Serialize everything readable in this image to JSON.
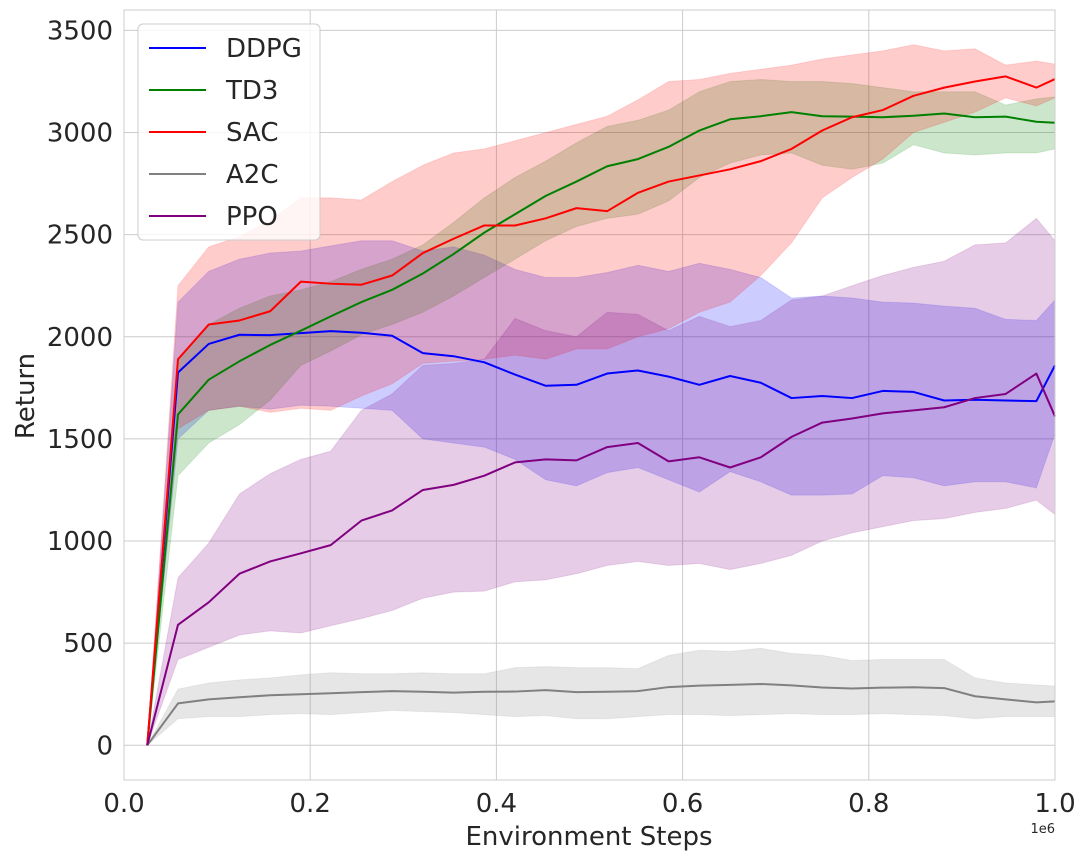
{
  "chart_data": {
    "type": "line",
    "xlabel": "Environment Steps",
    "ylabel": "Return",
    "x_offset_label": "1e6",
    "xlim": [
      0.0,
      1.0
    ],
    "ylim": [
      -170,
      3600
    ],
    "x_ticks": [
      0.0,
      0.2,
      0.4,
      0.6,
      0.8,
      1.0
    ],
    "x_tick_labels": [
      "0.0",
      "0.2",
      "0.4",
      "0.6",
      "0.8",
      "1.0"
    ],
    "y_ticks": [
      0,
      500,
      1000,
      1500,
      2000,
      2500,
      3000,
      3500
    ],
    "y_tick_labels": [
      "0",
      "500",
      "1000",
      "1500",
      "2000",
      "2500",
      "3000",
      "3500"
    ],
    "grid": true,
    "legend_position": "top-left",
    "x": [
      0.025,
      0.058,
      0.091,
      0.124,
      0.157,
      0.19,
      0.222,
      0.255,
      0.288,
      0.321,
      0.354,
      0.387,
      0.42,
      0.453,
      0.486,
      0.519,
      0.552,
      0.585,
      0.618,
      0.651,
      0.684,
      0.717,
      0.75,
      0.782,
      0.815,
      0.848,
      0.881,
      0.914,
      0.947,
      0.98,
      1.0
    ],
    "series": [
      {
        "name": "DDPG",
        "color": "#0000ff",
        "values": [
          0,
          1825,
          1965,
          2010,
          2008,
          2018,
          2028,
          2020,
          2005,
          1920,
          1905,
          1875,
          1815,
          1760,
          1765,
          1820,
          1835,
          1805,
          1765,
          1808,
          1775,
          1700,
          1710,
          1700,
          1735,
          1730,
          1688,
          1692,
          1688,
          1685,
          1860
        ],
        "lower": [
          0,
          1500,
          1640,
          1660,
          1645,
          1665,
          1660,
          1650,
          1640,
          1500,
          1480,
          1460,
          1400,
          1300,
          1270,
          1335,
          1360,
          1300,
          1240,
          1340,
          1290,
          1225,
          1225,
          1230,
          1320,
          1310,
          1270,
          1290,
          1290,
          1260,
          1525
        ],
        "upper": [
          0,
          2170,
          2320,
          2380,
          2410,
          2420,
          2445,
          2470,
          2470,
          2420,
          2440,
          2400,
          2330,
          2290,
          2290,
          2315,
          2350,
          2320,
          2360,
          2330,
          2290,
          2190,
          2200,
          2190,
          2170,
          2165,
          2150,
          2140,
          2085,
          2080,
          2180
        ]
      },
      {
        "name": "TD3",
        "color": "#008000",
        "values": [
          0,
          1620,
          1790,
          1880,
          1960,
          2030,
          2100,
          2170,
          2230,
          2310,
          2405,
          2510,
          2600,
          2690,
          2760,
          2835,
          2870,
          2930,
          3010,
          3065,
          3080,
          3100,
          3080,
          3078,
          3075,
          3082,
          3093,
          3075,
          3078,
          3053,
          3048
        ],
        "lower": [
          0,
          1320,
          1480,
          1570,
          1690,
          1860,
          1930,
          2010,
          2060,
          2120,
          2200,
          2290,
          2380,
          2470,
          2540,
          2580,
          2600,
          2665,
          2780,
          2850,
          2890,
          2900,
          2840,
          2820,
          2850,
          2940,
          2900,
          2890,
          2900,
          2900,
          2920
        ],
        "upper": [
          0,
          1890,
          2060,
          2140,
          2200,
          2230,
          2270,
          2330,
          2380,
          2450,
          2560,
          2680,
          2780,
          2860,
          2950,
          3030,
          3060,
          3110,
          3200,
          3250,
          3260,
          3250,
          3250,
          3240,
          3220,
          3200,
          3200,
          3200,
          3135,
          3165,
          3175
        ]
      },
      {
        "name": "SAC",
        "color": "#ff0000",
        "values": [
          0,
          1890,
          2060,
          2080,
          2125,
          2270,
          2260,
          2255,
          2300,
          2410,
          2480,
          2545,
          2545,
          2580,
          2630,
          2615,
          2705,
          2760,
          2790,
          2820,
          2860,
          2920,
          3010,
          3075,
          3110,
          3180,
          3220,
          3250,
          3275,
          3220,
          3262
        ],
        "lower": [
          0,
          1550,
          1640,
          1660,
          1630,
          1650,
          1640,
          1710,
          1770,
          1870,
          1880,
          1890,
          1910,
          1890,
          1940,
          1940,
          2000,
          2040,
          2120,
          2170,
          2300,
          2460,
          2680,
          2780,
          2870,
          3000,
          3050,
          3100,
          3170,
          3130,
          3170
        ],
        "upper": [
          0,
          2250,
          2440,
          2490,
          2570,
          2680,
          2680,
          2670,
          2760,
          2840,
          2900,
          2920,
          2960,
          3000,
          3040,
          3080,
          3160,
          3250,
          3260,
          3290,
          3310,
          3330,
          3360,
          3380,
          3400,
          3430,
          3400,
          3410,
          3330,
          3350,
          3335
        ]
      },
      {
        "name": "A2C",
        "color": "#808080",
        "values": [
          0,
          205,
          225,
          235,
          245,
          250,
          255,
          260,
          265,
          262,
          258,
          262,
          263,
          270,
          260,
          262,
          265,
          285,
          292,
          296,
          300,
          293,
          283,
          278,
          282,
          284,
          280,
          240,
          225,
          210,
          215
        ],
        "lower": [
          0,
          130,
          140,
          140,
          150,
          155,
          150,
          160,
          170,
          165,
          160,
          150,
          140,
          145,
          130,
          130,
          140,
          150,
          150,
          145,
          150,
          155,
          150,
          150,
          155,
          150,
          145,
          130,
          140,
          140,
          140
        ],
        "upper": [
          0,
          275,
          305,
          320,
          330,
          345,
          355,
          350,
          350,
          355,
          350,
          350,
          380,
          385,
          380,
          380,
          375,
          440,
          465,
          460,
          475,
          450,
          440,
          415,
          420,
          420,
          420,
          330,
          305,
          295,
          290
        ]
      },
      {
        "name": "PPO",
        "color": "#800080",
        "values": [
          0,
          590,
          700,
          840,
          900,
          940,
          980,
          1100,
          1150,
          1250,
          1275,
          1320,
          1385,
          1400,
          1395,
          1460,
          1480,
          1390,
          1410,
          1360,
          1410,
          1510,
          1580,
          1600,
          1625,
          1640,
          1655,
          1700,
          1720,
          1820,
          1610
        ],
        "lower": [
          0,
          420,
          480,
          540,
          560,
          550,
          585,
          620,
          660,
          720,
          750,
          755,
          800,
          810,
          840,
          880,
          900,
          880,
          890,
          860,
          890,
          930,
          1000,
          1040,
          1070,
          1100,
          1110,
          1140,
          1160,
          1200,
          1130
        ],
        "upper": [
          0,
          820,
          990,
          1230,
          1330,
          1400,
          1440,
          1640,
          1720,
          1860,
          1870,
          1890,
          2090,
          2030,
          2000,
          2120,
          2110,
          2030,
          2100,
          2050,
          2080,
          2180,
          2200,
          2250,
          2300,
          2340,
          2370,
          2450,
          2460,
          2580,
          2470
        ]
      }
    ]
  }
}
